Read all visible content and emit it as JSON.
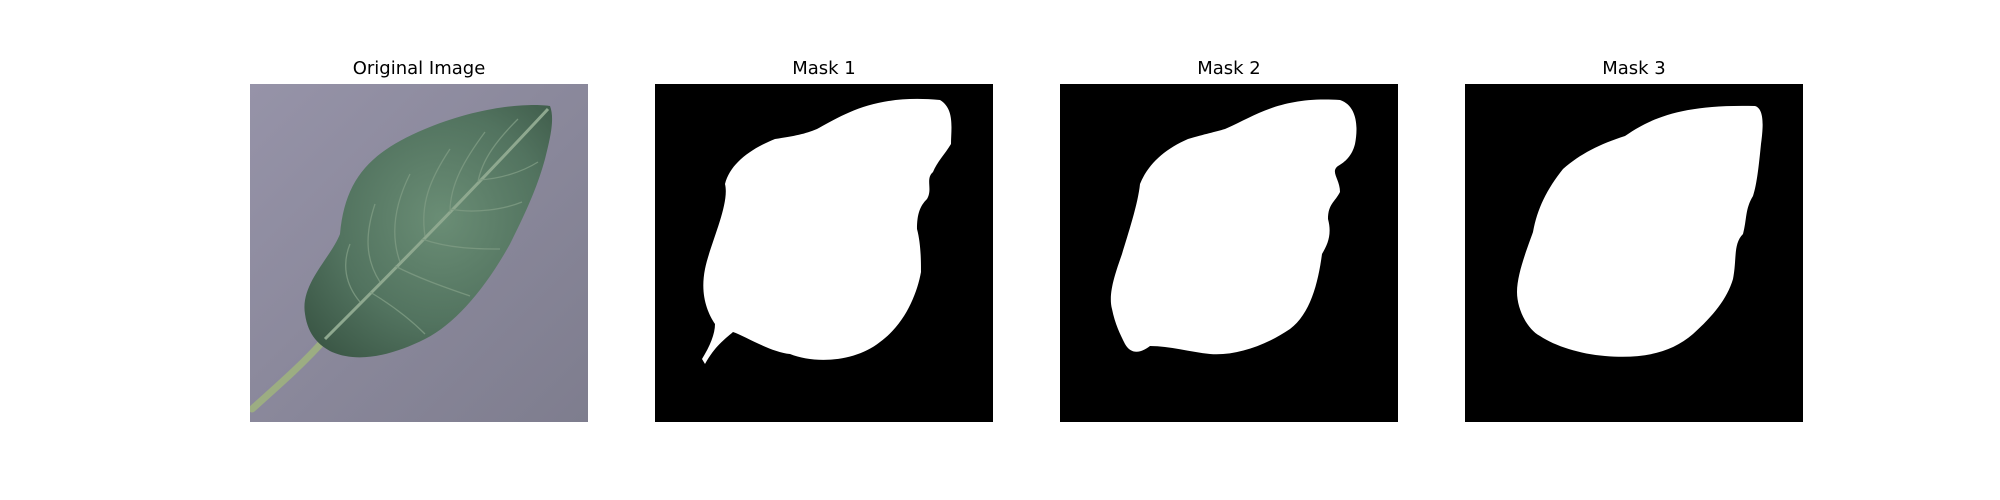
{
  "figure": {
    "panels": [
      {
        "title": "Original Image",
        "kind": "photo"
      },
      {
        "title": "Mask 1",
        "kind": "mask"
      },
      {
        "title": "Mask 2",
        "kind": "mask"
      },
      {
        "title": "Mask 3",
        "kind": "mask"
      }
    ]
  },
  "colors": {
    "mask_background": "#000000",
    "mask_foreground": "#ffffff",
    "photo_background": "#8e8c9f",
    "leaf_dark": "#3f5f4b",
    "leaf_mid": "#5d7f69",
    "vein": "#8ea88f",
    "stem": "#9cad82"
  }
}
